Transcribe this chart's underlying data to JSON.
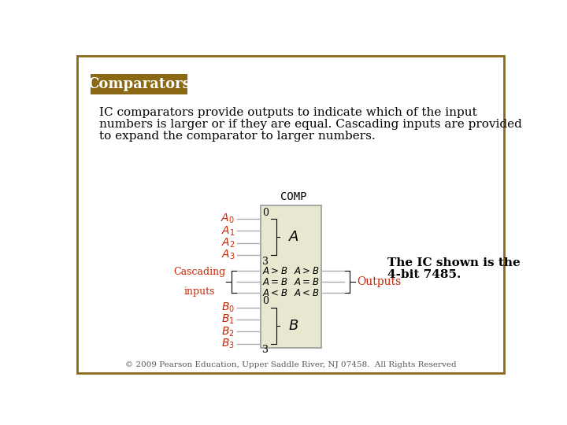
{
  "title": "Comparators",
  "title_bg": "#8B6914",
  "title_color": "#FFFFFF",
  "border_color": "#8B6914",
  "body_text_line1": "IC comparators provide outputs to indicate which of the input",
  "body_text_line2": "numbers is larger or if they are equal. Cascading inputs are provided",
  "body_text_line3": "to expand the comparator to larger numbers.",
  "body_text_color": "#000000",
  "ic_bg": "#E8E8D0",
  "ic_border": "#999999",
  "ic_label": "COMP",
  "red_color": "#CC2200",
  "black_color": "#000000",
  "note_text_line1": "The IC shown is the",
  "note_text_line2": "4-bit 7485.",
  "outputs_label": "Outputs",
  "casc_label1": "Cascading",
  "casc_label2": "inputs",
  "footer": "© 2009 Pearson Education, Upper Saddle River, NJ 07458.  All Rights Reserved",
  "footer_color": "#555555",
  "slide_bg": "#FFFFFF",
  "outer_border_color": "#8B6914"
}
